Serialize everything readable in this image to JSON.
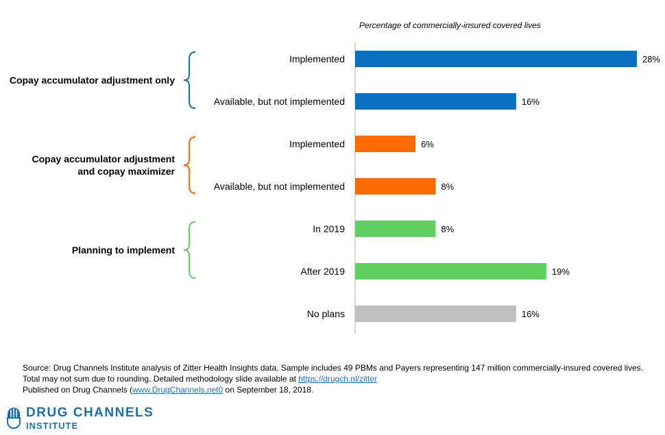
{
  "chart_data": {
    "type": "bar",
    "orientation": "horizontal",
    "subtitle": "Percentage of commercially-insured covered lives",
    "xlim": [
      0,
      28
    ],
    "groups": [
      {
        "label_lines": [
          "Copay accumulator adjustment only"
        ],
        "color": "#0b6fbf",
        "items": [
          0,
          1
        ]
      },
      {
        "label_lines": [
          "Copay accumulator adjustment",
          "and copay maximizer"
        ],
        "color": "#ff6a00",
        "items": [
          2,
          3
        ]
      },
      {
        "label_lines": [
          "Planning to implement"
        ],
        "color": "#5fcf5f",
        "items": [
          4,
          5
        ]
      }
    ],
    "categories": [
      "Implemented",
      "Available, but not implemented",
      "Implemented",
      "Available, but not implemented",
      "In 2019",
      "After 2019",
      "No plans"
    ],
    "values": [
      28,
      16,
      6,
      8,
      8,
      19,
      16
    ],
    "value_labels": [
      "28%",
      "16%",
      "6%",
      "8%",
      "8%",
      "19%",
      "16%"
    ],
    "colors": [
      "#0b6fbf",
      "#0b6fbf",
      "#ff6a00",
      "#ff6a00",
      "#5fcf5f",
      "#5fcf5f",
      "#bfbfbf"
    ]
  },
  "footer": {
    "source_text": "Source: Drug Channels Institute analysis of Zitter Health Insights data. Sample includes 49 PBMs and Payers representing 147 million commercially-insured covered lives. Total may not sum due to rounding. Detailed methodology slide available at ",
    "source_link": "https://drugch.nl/zitter",
    "published_prefix": "Published on Drug Channels (",
    "published_link": "www.DrugChannels.net0",
    "published_suffix": " on September 18, 2018."
  },
  "logo": {
    "name": "DRUG CHANNELS",
    "sub": "INSTITUTE",
    "color": "#1a6fb5"
  }
}
